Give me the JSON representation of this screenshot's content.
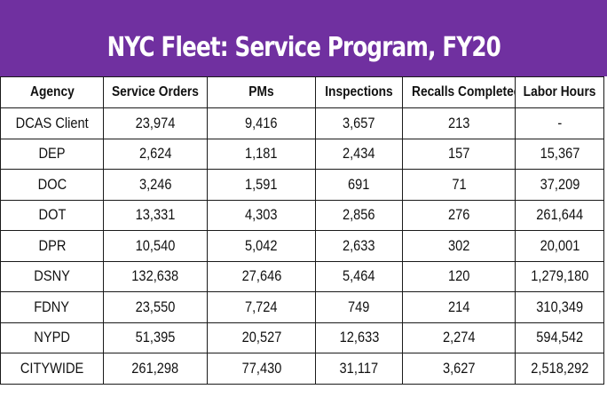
{
  "title": "NYC Fleet: Service Program, FY20",
  "colors": {
    "banner_background": "#7030a0",
    "banner_text": "#ffffff",
    "grid_lines": "#1a1a1a"
  },
  "table": {
    "headers": [
      "Agency",
      "Service Orders",
      "PMs",
      "Inspections",
      "Recalls Completed",
      "Labor Hours"
    ],
    "rows": [
      [
        "DCAS Client",
        "23,974",
        "9,416",
        "3,657",
        "213",
        "-"
      ],
      [
        "DEP",
        "2,624",
        "1,181",
        "2,434",
        "157",
        "15,367"
      ],
      [
        "DOC",
        "3,246",
        "1,591",
        "691",
        "71",
        "37,209"
      ],
      [
        "DOT",
        "13,331",
        "4,303",
        "2,856",
        "276",
        "261,644"
      ],
      [
        "DPR",
        "10,540",
        "5,042",
        "2,633",
        "302",
        "20,001"
      ],
      [
        "DSNY",
        "132,638",
        "27,646",
        "5,464",
        "120",
        "1,279,180"
      ],
      [
        "FDNY",
        "23,550",
        "7,724",
        "749",
        "214",
        "310,349"
      ],
      [
        "NYPD",
        "51,395",
        "20,527",
        "12,633",
        "2,274",
        "594,542"
      ],
      [
        "CITYWIDE",
        "261,298",
        "77,430",
        "31,117",
        "3,627",
        "2,518,292"
      ]
    ]
  }
}
